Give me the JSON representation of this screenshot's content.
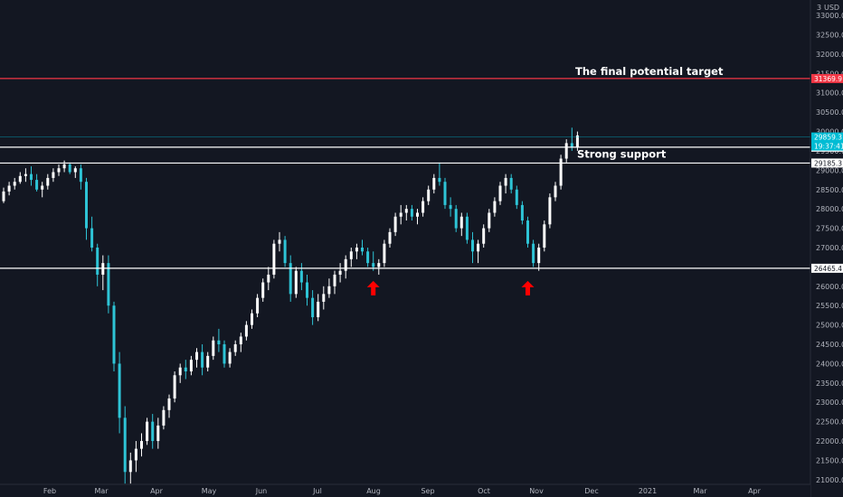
{
  "chart_data": {
    "type": "candlestick",
    "currency": "USD",
    "corner_label": "3",
    "y_ticks": [
      21000,
      21500,
      22000,
      22500,
      23000,
      23500,
      24000,
      24500,
      25000,
      25500,
      26000,
      26500,
      27000,
      27500,
      28000,
      28500,
      29000,
      29500,
      30000,
      30500,
      31000,
      31500,
      32000,
      32500,
      33000
    ],
    "ylim": [
      20880,
      33400
    ],
    "x_ticks": [
      "Feb",
      "Mar",
      "Apr",
      "May",
      "Jun",
      "Jul",
      "Aug",
      "Sep",
      "Oct",
      "Nov",
      "Dec",
      "2021",
      "Mar",
      "Apr"
    ],
    "series": [
      {
        "ohlc": [
          [
            28200,
            28550,
            28150,
            28450
          ],
          [
            28450,
            28700,
            28350,
            28600
          ],
          [
            28600,
            28800,
            28500,
            28700
          ],
          [
            28700,
            28950,
            28650,
            28850
          ],
          [
            28850,
            29050,
            28700,
            28900
          ],
          [
            28900,
            29100,
            28600,
            28750
          ],
          [
            28750,
            28900,
            28450,
            28500
          ],
          [
            28500,
            28700,
            28300,
            28600
          ],
          [
            28600,
            28900,
            28500,
            28800
          ],
          [
            28800,
            29050,
            28700,
            28950
          ],
          [
            28950,
            29150,
            28850,
            29050
          ],
          [
            29050,
            29250,
            28950,
            29150
          ],
          [
            29150,
            29200,
            28900,
            28950
          ],
          [
            28950,
            29100,
            28800,
            29050
          ],
          [
            29050,
            29150,
            28500,
            28700
          ],
          [
            28700,
            28800,
            27200,
            27500
          ],
          [
            27500,
            27800,
            26900,
            27000
          ],
          [
            27000,
            27100,
            26000,
            26300
          ],
          [
            26300,
            26800,
            25900,
            26600
          ],
          [
            26600,
            26800,
            25300,
            25500
          ],
          [
            25500,
            25600,
            23800,
            24000
          ],
          [
            24000,
            24300,
            22200,
            22600
          ],
          [
            22600,
            22900,
            20900,
            21200
          ],
          [
            21200,
            21700,
            20900,
            21500
          ],
          [
            21500,
            22000,
            21200,
            21800
          ],
          [
            21800,
            22200,
            21600,
            22000
          ],
          [
            22000,
            22600,
            21900,
            22500
          ],
          [
            22500,
            22700,
            21800,
            22000
          ],
          [
            22000,
            22600,
            21800,
            22400
          ],
          [
            22400,
            22900,
            22300,
            22800
          ],
          [
            22800,
            23200,
            22600,
            23100
          ],
          [
            23100,
            23800,
            23000,
            23700
          ],
          [
            23700,
            24000,
            23500,
            23900
          ],
          [
            23900,
            24100,
            23600,
            23800
          ],
          [
            23800,
            24200,
            23700,
            24100
          ],
          [
            24100,
            24400,
            23900,
            24300
          ],
          [
            24300,
            24500,
            23700,
            23900
          ],
          [
            23900,
            24300,
            23800,
            24200
          ],
          [
            24200,
            24700,
            24100,
            24600
          ],
          [
            24600,
            24900,
            24300,
            24500
          ],
          [
            24500,
            24600,
            23900,
            24000
          ],
          [
            24000,
            24400,
            23900,
            24300
          ],
          [
            24300,
            24600,
            24200,
            24500
          ],
          [
            24500,
            24800,
            24300,
            24700
          ],
          [
            24700,
            25100,
            24600,
            25000
          ],
          [
            25000,
            25400,
            24900,
            25300
          ],
          [
            25300,
            25800,
            25200,
            25700
          ],
          [
            25700,
            26200,
            25600,
            26100
          ],
          [
            26100,
            26500,
            25900,
            26300
          ],
          [
            26300,
            27200,
            26200,
            27100
          ],
          [
            27100,
            27400,
            26900,
            27200
          ],
          [
            27200,
            27300,
            26500,
            26600
          ],
          [
            26600,
            26800,
            25600,
            25800
          ],
          [
            25800,
            26500,
            25700,
            26400
          ],
          [
            26400,
            26600,
            25900,
            26100
          ],
          [
            26100,
            26300,
            25500,
            25700
          ],
          [
            25700,
            25900,
            25000,
            25200
          ],
          [
            25200,
            25800,
            25100,
            25600
          ],
          [
            25600,
            26000,
            25400,
            25800
          ],
          [
            25800,
            26200,
            25700,
            26000
          ],
          [
            26000,
            26400,
            25800,
            26300
          ],
          [
            26300,
            26600,
            26100,
            26400
          ],
          [
            26400,
            26800,
            26200,
            26700
          ],
          [
            26700,
            27000,
            26500,
            26900
          ],
          [
            26900,
            27100,
            26700,
            27000
          ],
          [
            27000,
            27200,
            26800,
            26900
          ],
          [
            26900,
            27000,
            26500,
            26600
          ],
          [
            26600,
            26900,
            26400,
            26500
          ],
          [
            26500,
            26700,
            26300,
            26600
          ],
          [
            26600,
            27200,
            26500,
            27100
          ],
          [
            27100,
            27500,
            27000,
            27400
          ],
          [
            27400,
            27900,
            27300,
            27800
          ],
          [
            27800,
            28100,
            27600,
            27900
          ],
          [
            27900,
            28100,
            27700,
            28000
          ],
          [
            28000,
            28100,
            27700,
            27800
          ],
          [
            27800,
            28000,
            27600,
            27900
          ],
          [
            27900,
            28300,
            27800,
            28200
          ],
          [
            28200,
            28600,
            28100,
            28500
          ],
          [
            28500,
            28900,
            28400,
            28800
          ],
          [
            28800,
            29200,
            28600,
            28700
          ],
          [
            28700,
            28800,
            28000,
            28100
          ],
          [
            28100,
            28300,
            27800,
            28000
          ],
          [
            28000,
            28100,
            27400,
            27500
          ],
          [
            27500,
            27900,
            27300,
            27800
          ],
          [
            27800,
            27900,
            27100,
            27200
          ],
          [
            27200,
            27400,
            26600,
            26900
          ],
          [
            26900,
            27200,
            26600,
            27100
          ],
          [
            27100,
            27600,
            27000,
            27500
          ],
          [
            27500,
            28000,
            27400,
            27900
          ],
          [
            27900,
            28300,
            27800,
            28200
          ],
          [
            28200,
            28700,
            28100,
            28600
          ],
          [
            28600,
            28900,
            28400,
            28800
          ],
          [
            28800,
            28900,
            28400,
            28500
          ],
          [
            28500,
            28600,
            28000,
            28100
          ],
          [
            28100,
            28200,
            27600,
            27700
          ],
          [
            27700,
            27800,
            27000,
            27100
          ],
          [
            27100,
            27200,
            26500,
            26600
          ],
          [
            26600,
            27100,
            26400,
            27000
          ],
          [
            27000,
            27700,
            26900,
            27600
          ],
          [
            27600,
            28400,
            27500,
            28300
          ],
          [
            28300,
            28700,
            28200,
            28600
          ],
          [
            28600,
            29400,
            28500,
            29300
          ],
          [
            29300,
            29800,
            29200,
            29700
          ],
          [
            29700,
            30100,
            29500,
            29600
          ],
          [
            29600,
            30000,
            29500,
            29900
          ]
        ]
      }
    ],
    "annotations": [
      {
        "text": "The final potential target",
        "price": 31369.9
      },
      {
        "text": "Strong support",
        "price": 29185.3
      }
    ],
    "horizontal_lines": [
      {
        "price": 31369.9,
        "color": "#f23645",
        "label": "31369.9"
      },
      {
        "price": 29596.4,
        "color": "#ffffff",
        "label": "29596.4"
      },
      {
        "price": 29185.3,
        "color": "#ffffff",
        "label": "29185.3"
      },
      {
        "price": 26465.4,
        "color": "#ffffff",
        "label": "26465.4"
      }
    ],
    "current_price": {
      "price": 29859.3,
      "label": "29859.3",
      "countdown": "19:37:41",
      "color": "#00bcd4"
    },
    "markers": [
      {
        "type": "up-arrow",
        "color": "#ff0000",
        "at_candle": 67
      },
      {
        "type": "up-arrow",
        "color": "#ff0000",
        "at_candle": 95
      }
    ],
    "colors": {
      "background": "#131722",
      "candle": "#2ec4d6",
      "up_wick": "#ffffff",
      "axis_text": "#b2b5be",
      "grid": "#1e222d"
    }
  }
}
